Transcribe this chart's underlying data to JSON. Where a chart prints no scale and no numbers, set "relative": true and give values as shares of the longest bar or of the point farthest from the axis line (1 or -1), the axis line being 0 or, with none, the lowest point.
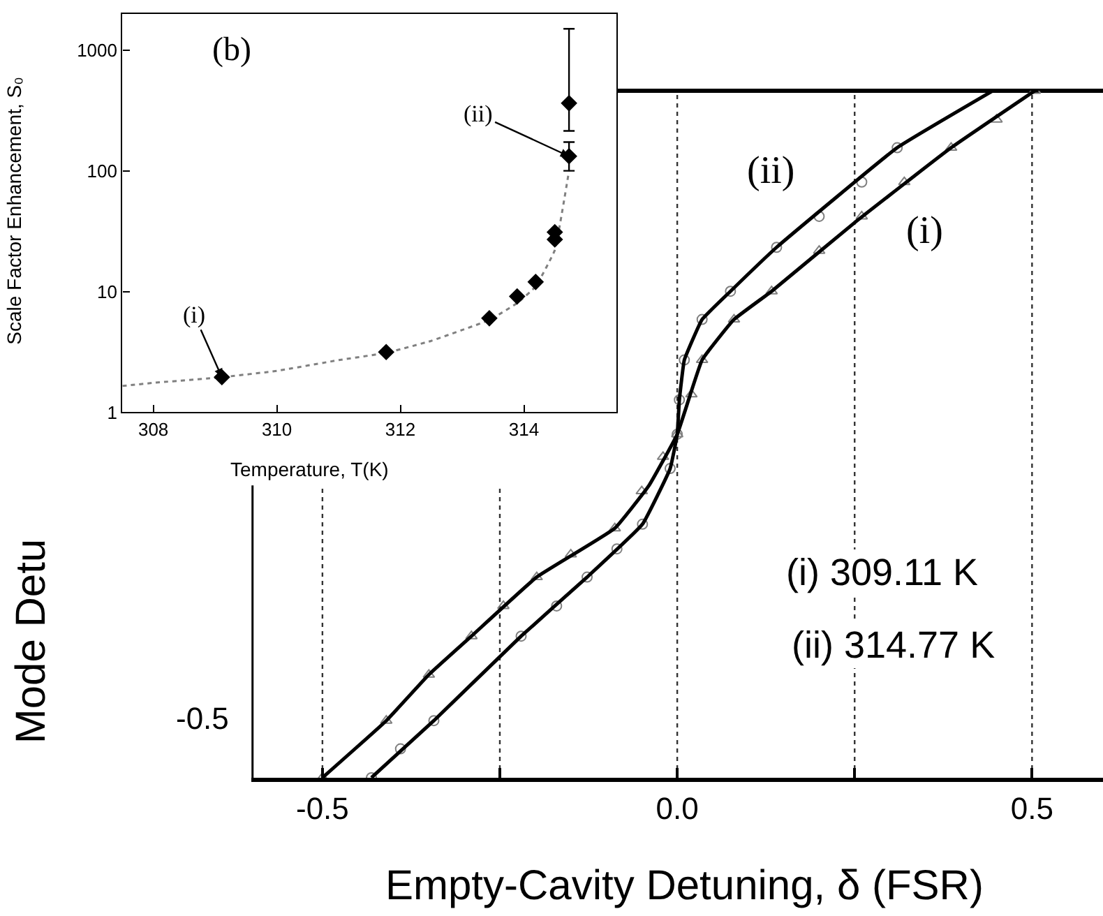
{
  "chart_data": [
    {
      "type": "scatter",
      "xlabel": "Empty-Cavity Detuning, δ (FSR)",
      "ylabel": "Mode Detu",
      "relative": true,
      "xlim": [
        -0.6,
        0.6
      ],
      "xticks": [
        -0.5,
        {
          "value": -0.25,
          "label": null
        },
        {
          "value": 0,
          "label": "0.0"
        },
        {
          "value": 0.25,
          "label": null
        },
        0.5
      ],
      "grid": "x",
      "series": [
        {
          "type": "scatter",
          "marker": "triangle",
          "color": "#808080",
          "x": [
            -0.5,
            -0.41,
            -0.35,
            -0.29,
            -0.245,
            -0.198,
            -0.15,
            -0.088,
            -0.05,
            -0.02,
            0,
            0.02,
            0.035,
            0.08,
            0.133,
            0.2,
            0.26,
            0.32,
            0.386,
            0.45,
            0.504
          ],
          "values": [
            0,
            0.083,
            0.15,
            0.206,
            0.25,
            0.292,
            0.325,
            0.363,
            0.417,
            0.467,
            0.5,
            0.558,
            0.608,
            0.667,
            0.708,
            0.767,
            0.817,
            0.867,
            0.917,
            0.958,
            1
          ]
        },
        {
          "type": "scatter",
          "marker": "circle",
          "color": "#808080",
          "x": [
            -0.431,
            -0.39,
            -0.343,
            -0.22,
            -0.17,
            -0.127,
            -0.085,
            -0.049,
            -0.01,
            0,
            0.003,
            0.01,
            0.035,
            0.075,
            0.14,
            0.2,
            0.26,
            0.31
          ],
          "values": [
            0,
            0.042,
            0.083,
            0.206,
            0.25,
            0.292,
            0.333,
            0.369,
            0.45,
            0.5,
            0.55,
            0.608,
            0.667,
            0.708,
            0.772,
            0.817,
            0.867,
            0.917
          ]
        },
        {
          "type": "line",
          "line_style": "solid",
          "marker": "none",
          "color": "#000000",
          "x": [
            -0.5,
            -0.41,
            -0.35,
            -0.29,
            -0.198,
            -0.088,
            -0.04,
            0,
            0.035,
            0.08,
            0.133,
            0.25,
            0.386,
            0.504
          ],
          "values": [
            0,
            0.083,
            0.15,
            0.206,
            0.292,
            0.363,
            0.425,
            0.5,
            0.608,
            0.667,
            0.708,
            0.808,
            0.917,
            1
          ]
        },
        {
          "type": "line",
          "line_style": "solid",
          "marker": "none",
          "color": "#000000",
          "x": [
            -0.431,
            -0.343,
            -0.22,
            -0.127,
            -0.049,
            -0.01,
            0,
            0.003,
            0.01,
            0.035,
            0.075,
            0.14,
            0.31,
            0.445
          ],
          "values": [
            0,
            0.083,
            0.206,
            0.292,
            0.369,
            0.45,
            0.5,
            0.55,
            0.608,
            0.667,
            0.708,
            0.772,
            0.917,
            1
          ]
        }
      ],
      "annotations": [
        "(ii)",
        "(i)",
        "(i) 309.11 K",
        "(ii) 314.77 K",
        "-0.5"
      ]
    },
    {
      "type": "scatter",
      "xlabel": "Temperature, T(K)",
      "ylabel": "Scale Factor Enhancement, S₀",
      "log": "y",
      "xlim": [
        307.5,
        315.5
      ],
      "ylim": [
        1,
        2000
      ],
      "xticks": [
        308,
        310,
        312,
        314
      ],
      "yticks": [
        1,
        10,
        100,
        1000
      ],
      "grid": false,
      "series": [
        {
          "type": "line",
          "line_style": "dotted",
          "marker": "none",
          "color": "#808080",
          "x": [
            307.5,
            308,
            309.11,
            310,
            311,
            311.77,
            312.5,
            313,
            313.44,
            313.89,
            314.19,
            314.5,
            314.73
          ],
          "values": [
            1.65,
            1.75,
            1.95,
            2.2,
            2.7,
            3.1,
            3.9,
            4.8,
            5.8,
            8,
            11,
            22,
            100
          ]
        },
        {
          "type": "scatter",
          "marker": "diamond",
          "color": "#000000",
          "x": [
            309.11,
            311.77,
            313.44,
            313.89,
            314.19,
            314.5,
            314.5,
            314.73,
            314.73
          ],
          "values": [
            1.95,
            3.15,
            6.0,
            9.1,
            12,
            27,
            31,
            132,
            363
          ],
          "errors": [
            null,
            null,
            null,
            null,
            null,
            null,
            null,
            [
              100,
              173
            ],
            [
              214,
              1500
            ]
          ]
        }
      ],
      "annotations": [
        "(b)",
        {
          "text": "(i)",
          "x": 309.11,
          "y": 1.95
        },
        {
          "text": "(ii)",
          "x": 314.73,
          "y": 132
        }
      ]
    }
  ]
}
